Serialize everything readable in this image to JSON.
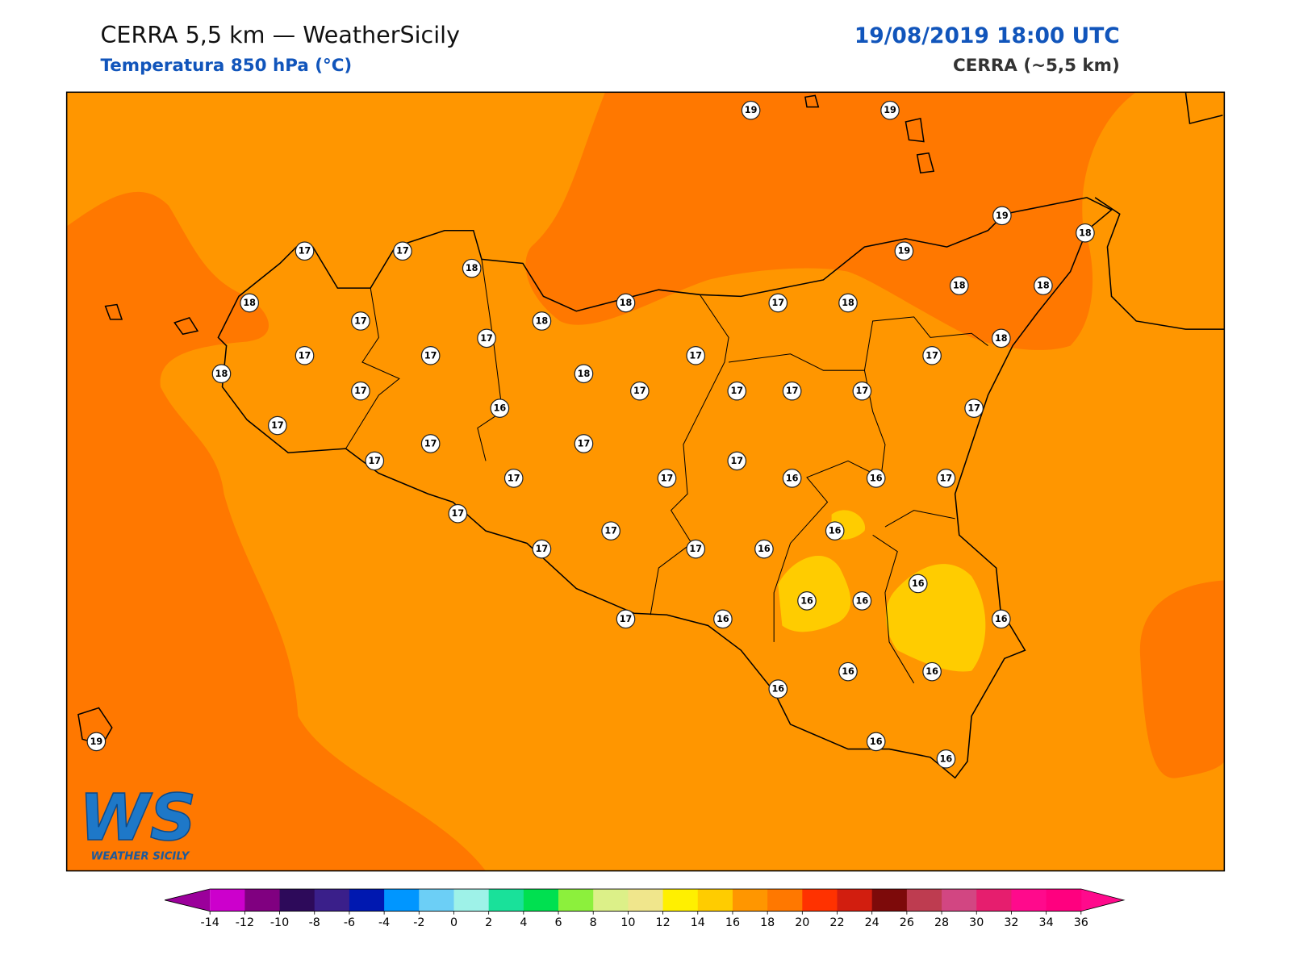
{
  "header": {
    "title": "CERRA 5,5 km — WeatherSicily",
    "subtitle": "Temperatura 850 hPa (°C)",
    "datetime": "19/08/2019 18:00 UTC",
    "model": "CERRA (~5,5 km)"
  },
  "logo": {
    "mark": "WS",
    "text": "WEATHER SICILY"
  },
  "stations": [
    19,
    19,
    17,
    17,
    18,
    19,
    18,
    19,
    18,
    17,
    18,
    18,
    17,
    18,
    18,
    18,
    18,
    17,
    17,
    17,
    17,
    17,
    18,
    18,
    17,
    17,
    17,
    17,
    17,
    17,
    16,
    17,
    17,
    17,
    17,
    17,
    17,
    17,
    16,
    16,
    17,
    17,
    16,
    17,
    17,
    17,
    16,
    16,
    16,
    16,
    17,
    16,
    16,
    16,
    16,
    16,
    16,
    16,
    19
  ],
  "colorbar": {
    "ticks": [
      -14,
      -12,
      -10,
      -8,
      -6,
      -4,
      -2,
      0,
      2,
      4,
      6,
      8,
      10,
      12,
      14,
      16,
      18,
      20,
      22,
      24,
      26,
      28,
      30,
      32,
      34,
      36
    ],
    "colors": [
      "#cc00cc",
      "#800080",
      "#2d0a5a",
      "#3a1f8a",
      "#0018b0",
      "#0096ff",
      "#6ccff6",
      "#9ef2e8",
      "#19e19a",
      "#00e050",
      "#8cf03c",
      "#dcf088",
      "#f0e68c",
      "#fff000",
      "#ffcc00",
      "#ff9600",
      "#ff7800",
      "#ff3200",
      "#d21e0f",
      "#7d0a0a",
      "#be3c50",
      "#d24682",
      "#e61e6e",
      "#ff0a8c",
      "#ff007f"
    ],
    "under_color": "#9b009b",
    "over_color": "#ff0a8c"
  }
}
